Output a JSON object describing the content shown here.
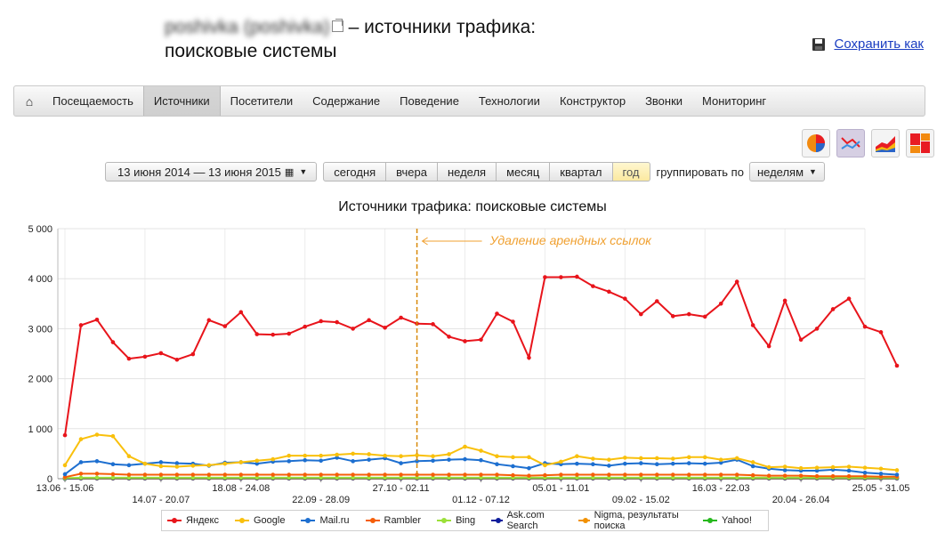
{
  "header": {
    "site_name_blurred": "poshivka (poshivka)",
    "title_suffix": "– источники трафика:",
    "title_line2": "поисковые системы",
    "save_as": "Сохранить как"
  },
  "nav": {
    "items": [
      {
        "label": "Посещаемость"
      },
      {
        "label": "Источники",
        "active": true
      },
      {
        "label": "Посетители"
      },
      {
        "label": "Содержание"
      },
      {
        "label": "Поведение"
      },
      {
        "label": "Технологии"
      },
      {
        "label": "Конструктор"
      },
      {
        "label": "Звонки"
      },
      {
        "label": "Мониторинг"
      }
    ]
  },
  "toolbar": {
    "date_range": "13 июня 2014 — 13 июня 2015",
    "periods": [
      "сегодня",
      "вчера",
      "неделя",
      "месяц",
      "квартал",
      "год"
    ],
    "active_period": "год",
    "group_label": "группировать по",
    "group_value": "неделям"
  },
  "chart_types": [
    "pie-chart-icon",
    "line-chart-icon",
    "area-chart-icon",
    "tile-chart-icon"
  ],
  "chart_data": {
    "type": "line",
    "title": "Источники трафика: поисковые системы",
    "ylim": [
      0,
      5000
    ],
    "yticks": [
      "5 000",
      "4 000",
      "3 000",
      "2 000",
      "1 000",
      "0"
    ],
    "x_tick_labels_row1": [
      "13.06 - 15.06",
      "18.08 - 24.08",
      "27.10 - 02.11",
      "05.01 - 11.01",
      "16.03 - 22.03",
      "25.05 - 31.05"
    ],
    "x_tick_labels_row2": [
      "14.07 - 20.07",
      "22.09 - 28.09",
      "01.12 - 07.12",
      "09.02 - 15.02",
      "20.04 - 26.04"
    ],
    "annotation": {
      "text": "Удаление арендных ссылок",
      "index": 22
    },
    "series": [
      {
        "name": "Яндекс",
        "color": "#e8141b",
        "values": [
          870,
          3070,
          3180,
          2730,
          2400,
          2440,
          2510,
          2380,
          2490,
          3170,
          3050,
          3330,
          2890,
          2880,
          2900,
          3040,
          3150,
          3130,
          3000,
          3170,
          3020,
          3220,
          3100,
          3090,
          2840,
          2750,
          2780,
          3300,
          3140,
          2420,
          4030,
          4030,
          4040,
          3850,
          3740,
          3600,
          3290,
          3550,
          3250,
          3290,
          3240,
          3500,
          3940,
          3070,
          2650,
          3560,
          2780,
          3000,
          3390,
          3600,
          3040,
          2930,
          2260
        ]
      },
      {
        "name": "Google",
        "color": "#f9c00c",
        "values": [
          270,
          790,
          880,
          850,
          450,
          300,
          250,
          240,
          260,
          270,
          300,
          330,
          360,
          390,
          460,
          460,
          460,
          480,
          500,
          490,
          460,
          450,
          470,
          450,
          490,
          640,
          560,
          450,
          430,
          430,
          270,
          340,
          450,
          400,
          380,
          420,
          410,
          410,
          400,
          430,
          430,
          380,
          410,
          330,
          230,
          240,
          210,
          220,
          230,
          240,
          220,
          200,
          170
        ]
      },
      {
        "name": "Mail.ru",
        "color": "#1d6fd0",
        "values": [
          90,
          330,
          350,
          290,
          270,
          300,
          330,
          310,
          300,
          260,
          320,
          330,
          300,
          340,
          350,
          370,
          360,
          420,
          350,
          380,
          410,
          310,
          350,
          360,
          380,
          390,
          370,
          290,
          250,
          210,
          310,
          290,
          300,
          290,
          260,
          300,
          310,
          290,
          300,
          310,
          300,
          320,
          380,
          250,
          200,
          170,
          160,
          160,
          180,
          160,
          120,
          100,
          80
        ]
      },
      {
        "name": "Rambler",
        "color": "#f55e08",
        "values": [
          30,
          100,
          100,
          90,
          80,
          80,
          80,
          80,
          80,
          80,
          80,
          80,
          80,
          80,
          80,
          80,
          80,
          80,
          80,
          80,
          80,
          80,
          80,
          80,
          80,
          80,
          80,
          80,
          70,
          60,
          70,
          80,
          80,
          80,
          80,
          80,
          80,
          80,
          80,
          80,
          80,
          80,
          80,
          70,
          60,
          60,
          60,
          50,
          50,
          50,
          50,
          40,
          40
        ]
      },
      {
        "name": "Bing",
        "color": "#9be039",
        "values": [
          10,
          20,
          20,
          20,
          20,
          20,
          20,
          20,
          20,
          20,
          20,
          20,
          20,
          20,
          20,
          20,
          20,
          20,
          20,
          20,
          20,
          20,
          20,
          20,
          20,
          20,
          20,
          20,
          20,
          20,
          20,
          20,
          20,
          20,
          20,
          20,
          20,
          20,
          20,
          20,
          20,
          20,
          20,
          20,
          20,
          20,
          20,
          20,
          20,
          20,
          20,
          20,
          20
        ]
      },
      {
        "name": "Ask.com Search",
        "color": "#0c1c9c",
        "values": [
          0,
          10,
          10,
          10,
          10,
          10,
          10,
          10,
          10,
          10,
          10,
          10,
          10,
          10,
          10,
          10,
          10,
          10,
          10,
          10,
          10,
          10,
          10,
          10,
          10,
          10,
          10,
          10,
          10,
          10,
          10,
          10,
          10,
          10,
          10,
          10,
          10,
          10,
          10,
          10,
          10,
          10,
          10,
          10,
          10,
          10,
          10,
          10,
          10,
          10,
          10,
          10,
          10
        ]
      },
      {
        "name": "Nigma, результаты поиска",
        "color": "#f29100",
        "values": [
          0,
          5,
          5,
          5,
          5,
          5,
          5,
          5,
          5,
          5,
          5,
          5,
          5,
          5,
          5,
          5,
          5,
          5,
          5,
          5,
          5,
          5,
          5,
          5,
          5,
          5,
          5,
          5,
          5,
          5,
          5,
          5,
          5,
          5,
          5,
          5,
          5,
          5,
          5,
          5,
          5,
          5,
          5,
          5,
          5,
          5,
          5,
          5,
          5,
          5,
          5,
          5,
          5
        ]
      },
      {
        "name": "Yahoo!",
        "color": "#26b81d",
        "values": [
          0,
          5,
          5,
          5,
          5,
          5,
          5,
          5,
          5,
          5,
          5,
          5,
          5,
          5,
          5,
          5,
          5,
          5,
          5,
          5,
          5,
          5,
          5,
          5,
          5,
          5,
          5,
          5,
          5,
          5,
          5,
          5,
          5,
          5,
          5,
          5,
          5,
          5,
          5,
          5,
          5,
          5,
          5,
          5,
          5,
          5,
          5,
          5,
          5,
          5,
          5,
          5,
          5
        ]
      }
    ]
  }
}
